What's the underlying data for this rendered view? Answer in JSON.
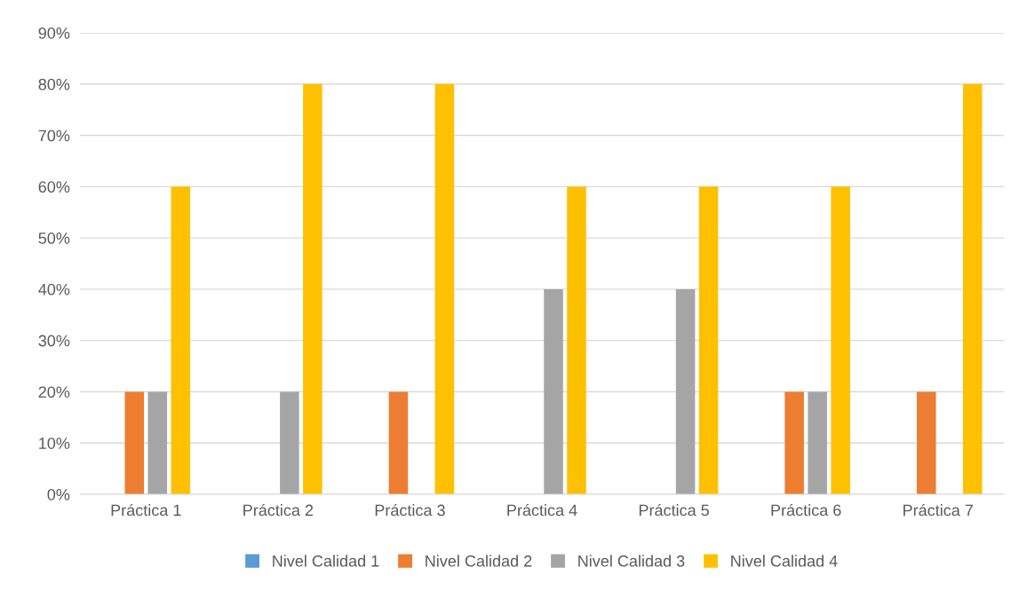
{
  "chart_data": {
    "type": "bar",
    "categories": [
      "Práctica 1",
      "Práctica 2",
      "Práctica 3",
      "Práctica 4",
      "Práctica 5",
      "Práctica 6",
      "Práctica 7"
    ],
    "series": [
      {
        "name": "Nivel Calidad 1",
        "color": "#5b9bd5",
        "values": [
          0,
          0,
          0,
          0,
          0,
          0,
          0
        ]
      },
      {
        "name": "Nivel Calidad 2",
        "color": "#ed7d31",
        "values": [
          20,
          0,
          20,
          0,
          0,
          20,
          20
        ]
      },
      {
        "name": "Nivel Calidad 3",
        "color": "#a5a5a5",
        "values": [
          20,
          20,
          0,
          40,
          40,
          20,
          0
        ]
      },
      {
        "name": "Nivel Calidad 4",
        "color": "#ffc000",
        "values": [
          60,
          80,
          80,
          60,
          60,
          60,
          80
        ]
      }
    ],
    "ylim": [
      0,
      90
    ],
    "yticks": [
      {
        "value": 0,
        "label": "0%"
      },
      {
        "value": 10,
        "label": "10%"
      },
      {
        "value": 20,
        "label": "20%"
      },
      {
        "value": 30,
        "label": "30%"
      },
      {
        "value": 40,
        "label": "40%"
      },
      {
        "value": 50,
        "label": "50%"
      },
      {
        "value": 60,
        "label": "60%"
      },
      {
        "value": 70,
        "label": "70%"
      },
      {
        "value": 80,
        "label": "80%"
      },
      {
        "value": 90,
        "label": "90%"
      }
    ],
    "grid": "y",
    "legend": "bottom"
  }
}
